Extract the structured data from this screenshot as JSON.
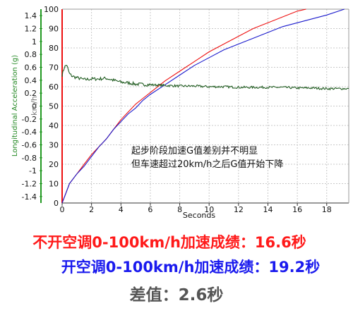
{
  "chart_data": {
    "type": "line",
    "xlabel": "Seconds",
    "ylabel_left": "Longitudinal Acceleration (g)",
    "ylabel_right": "km/h",
    "xlim": [
      0,
      19.5
    ],
    "x_ticks": [
      "0",
      "2",
      "4",
      "6",
      "8",
      "10",
      "12",
      "14",
      "16",
      "18"
    ],
    "left_ylim": [
      -1.5,
      1.5
    ],
    "left_ticks": [
      "1.4",
      "1.2",
      "1",
      "0.8",
      "0.6",
      "0.4",
      "0.2",
      "0",
      "-0.2",
      "-0.4",
      "-0.6",
      "-0.8",
      "-1",
      "-1.2",
      "-1.4"
    ],
    "right_ylim": [
      0,
      100
    ],
    "right_ticks": [
      "100",
      "90",
      "80",
      "70",
      "60",
      "50",
      "40",
      "30",
      "20",
      "10",
      "0"
    ],
    "grid": true,
    "colors": {
      "red": "#ee1111",
      "blue": "#1a1acc",
      "green": "#1e5a1e",
      "axis_green": "#229922",
      "axis_red": "#ee1111"
    },
    "series": [
      {
        "color": "red",
        "axis": "right",
        "x": [
          0,
          0.2,
          0.5,
          1,
          1.5,
          2,
          2.5,
          3,
          3.5,
          4,
          4.5,
          5,
          5.5,
          6,
          7,
          8,
          9,
          10,
          11,
          12,
          13,
          14,
          15,
          16,
          16.6
        ],
        "y": [
          0,
          4,
          10,
          15,
          20,
          25,
          29,
          33,
          38,
          43,
          47,
          51,
          54,
          57,
          63,
          68,
          73,
          78,
          82,
          86,
          90,
          93,
          96,
          99,
          100
        ]
      },
      {
        "color": "blue",
        "axis": "right",
        "x": [
          0,
          0.2,
          0.5,
          1,
          1.5,
          2,
          2.5,
          3,
          3.5,
          4,
          4.5,
          5,
          5.5,
          6,
          7,
          8,
          9,
          10,
          11,
          12,
          13,
          14,
          15,
          16,
          17,
          18,
          19.2
        ],
        "y": [
          0,
          4,
          10,
          15,
          19,
          24,
          29,
          33,
          38,
          42,
          46,
          49,
          53,
          56,
          61,
          66,
          71,
          75,
          79,
          82,
          85,
          88,
          91,
          93,
          95,
          97,
          100
        ]
      },
      {
        "color": "green",
        "axis": "left",
        "x": [
          0,
          0.15,
          0.3,
          0.5,
          0.7,
          1,
          1.5,
          2,
          2.5,
          3,
          3.5,
          4,
          4.5,
          5,
          6,
          7,
          8,
          9,
          10,
          11,
          12,
          13,
          14,
          15,
          16,
          17,
          18,
          19.5
        ],
        "y": [
          0.48,
          0.6,
          0.64,
          0.5,
          0.46,
          0.44,
          0.41,
          0.42,
          0.42,
          0.43,
          0.4,
          0.37,
          0.36,
          0.34,
          0.33,
          0.32,
          0.31,
          0.31,
          0.3,
          0.3,
          0.29,
          0.29,
          0.29,
          0.29,
          0.28,
          0.28,
          0.27,
          0.27
        ]
      }
    ],
    "annotation": [
      "起步阶段加速G值差别并不明显",
      "但车速超过20km/h之后G值开始下降"
    ]
  },
  "results": {
    "line1": "不开空调0-100km/h加速成绩：16.6秒",
    "line2": "开空调0-100km/h加速成绩：19.2秒",
    "line3": "差值：2.6秒"
  }
}
